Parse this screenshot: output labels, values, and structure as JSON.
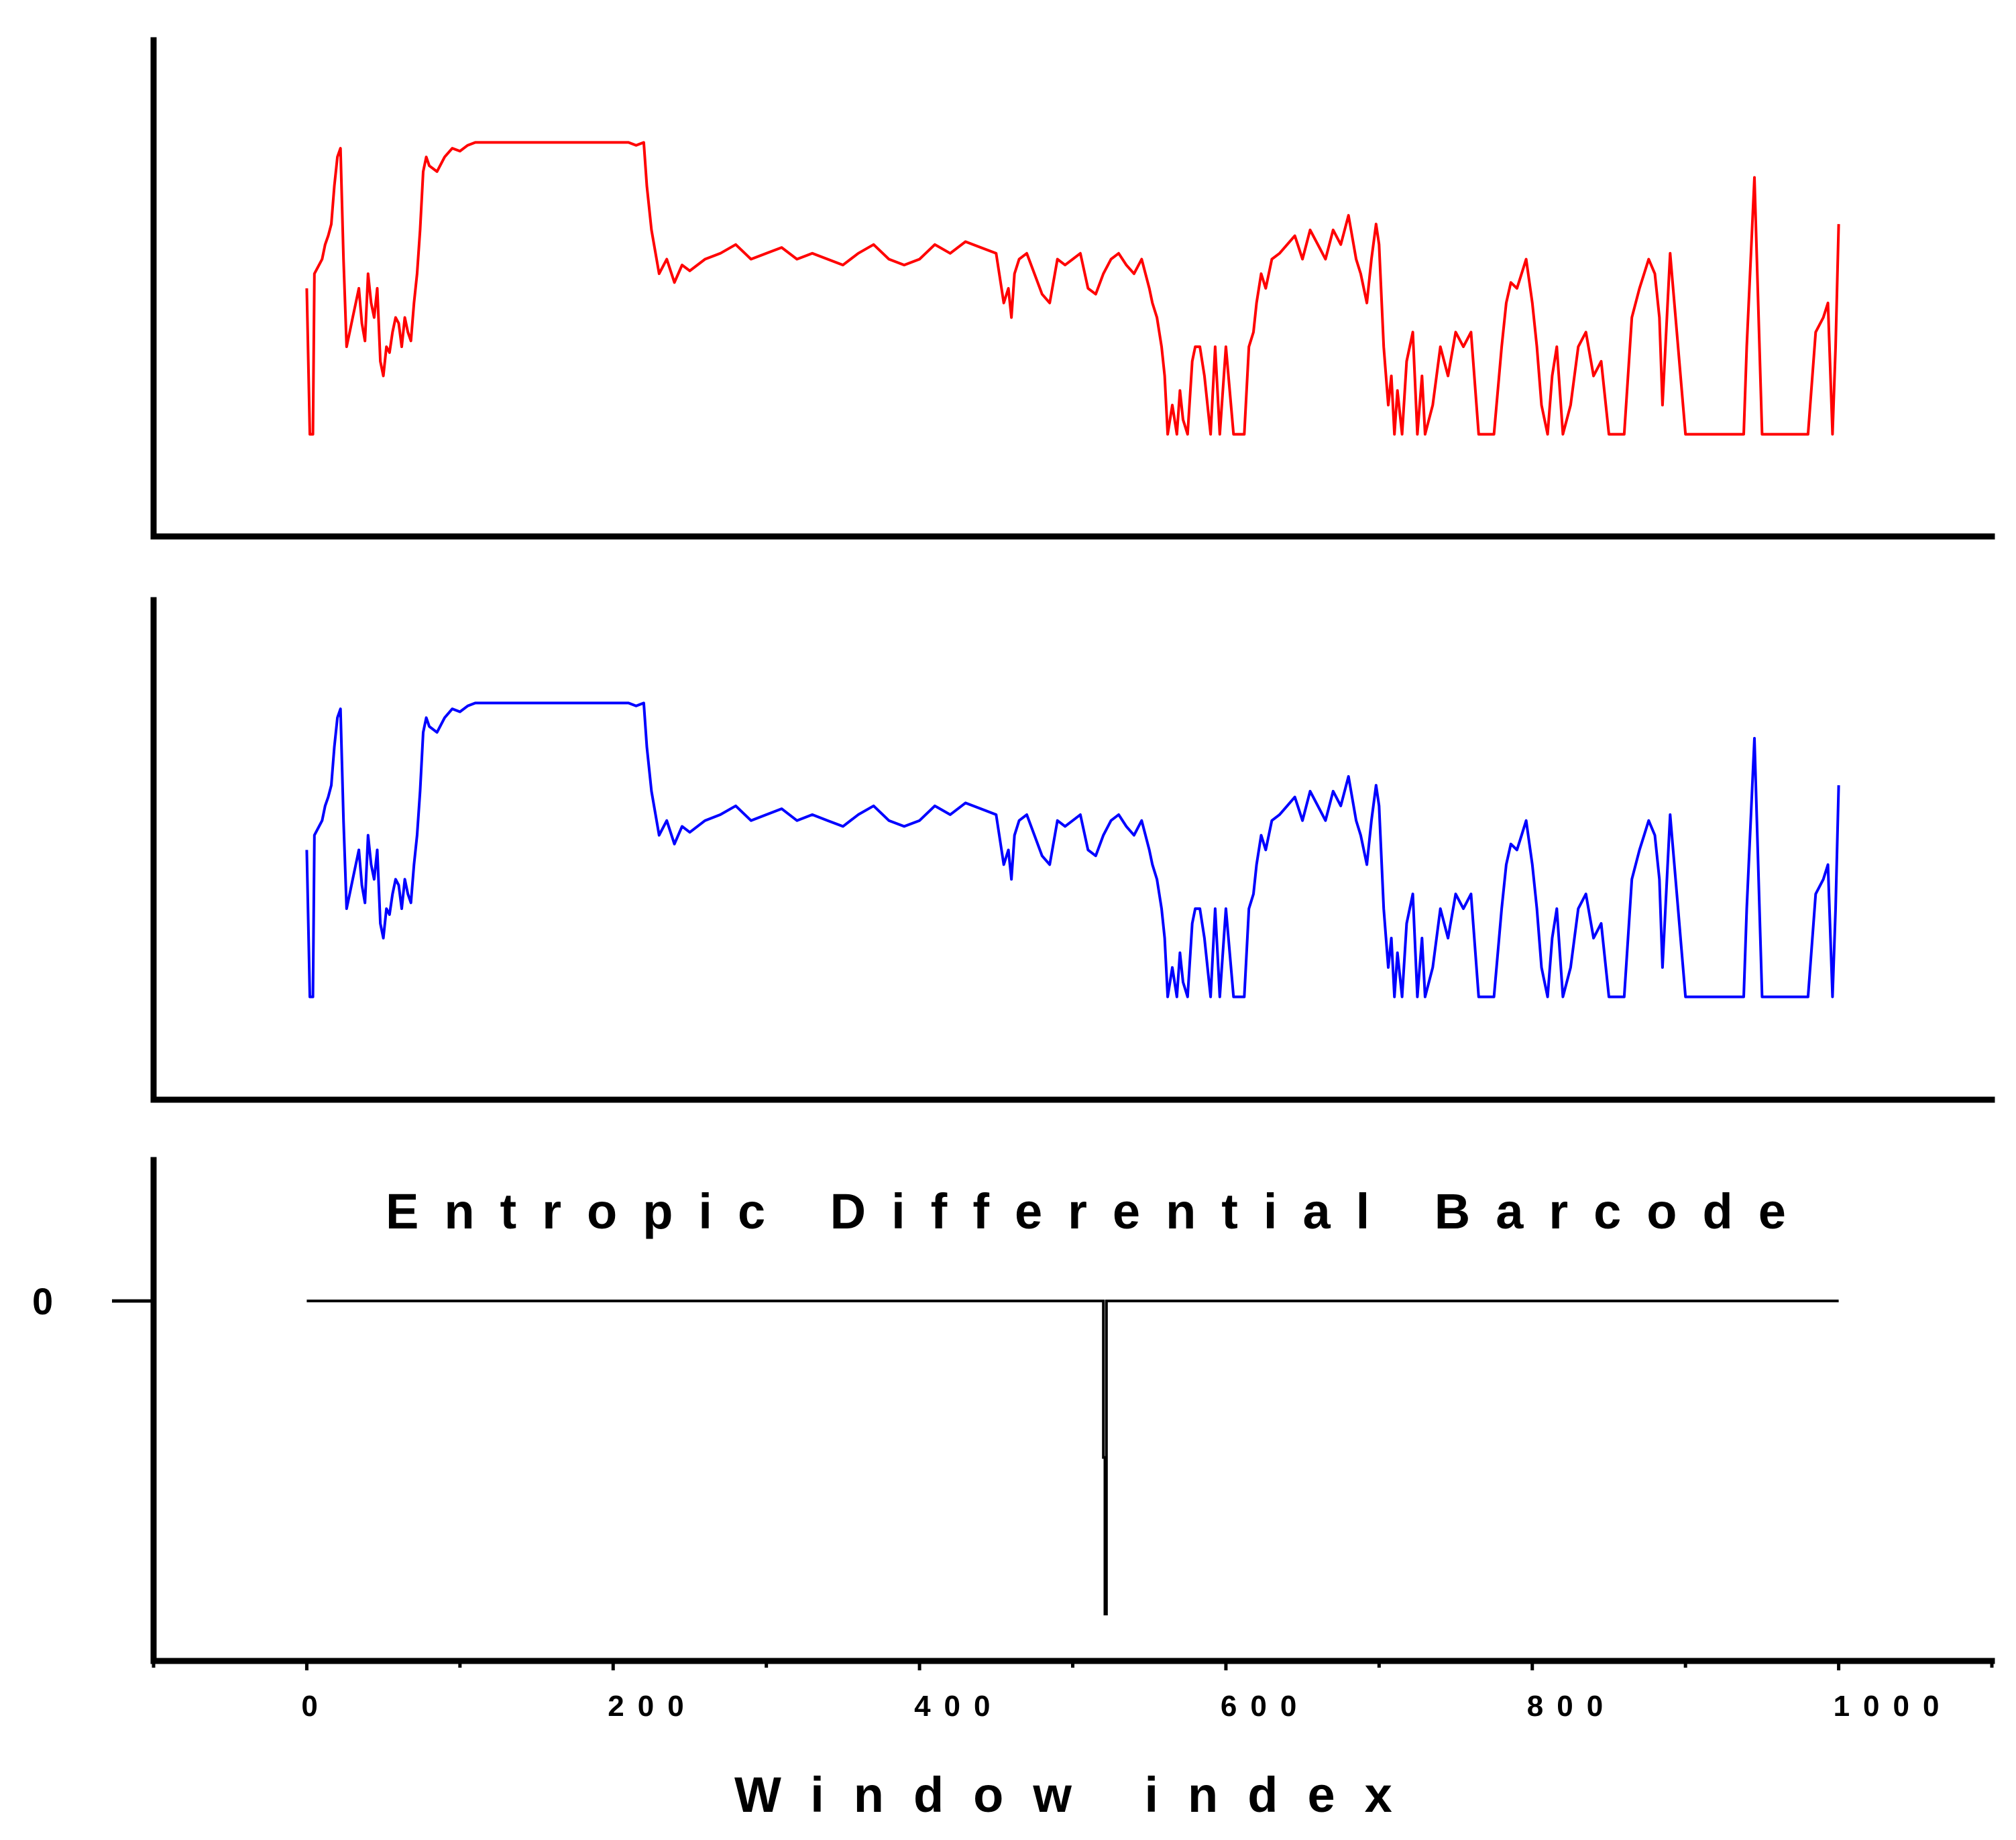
{
  "chart_data": [
    {
      "type": "line",
      "panel": "top",
      "color": "#ff0000",
      "xlim": [
        -100,
        1100
      ],
      "ylim": [
        -0.35,
        1.35
      ],
      "x_points": [
        0,
        2,
        4,
        5,
        8,
        10,
        12,
        14,
        16,
        18,
        20,
        22,
        24,
        26,
        28,
        30,
        32,
        34,
        36,
        38,
        40,
        42,
        44,
        46,
        48,
        50,
        52,
        54,
        56,
        58,
        60,
        62,
        64,
        66,
        68,
        70,
        72,
        74,
        76,
        78,
        80,
        85,
        90,
        95,
        100,
        105,
        110,
        120,
        130,
        140,
        150,
        160,
        170,
        180,
        190,
        200,
        205,
        210,
        215,
        220,
        222,
        225,
        230,
        235,
        240,
        245,
        250,
        260,
        270,
        280,
        290,
        300,
        310,
        320,
        330,
        340,
        350,
        360,
        370,
        380,
        390,
        400,
        410,
        420,
        430,
        440,
        450,
        455,
        458,
        460,
        462,
        465,
        470,
        475,
        480,
        485,
        490,
        495,
        500,
        505,
        510,
        515,
        520,
        525,
        530,
        535,
        540,
        545,
        550,
        552,
        555,
        558,
        560,
        562,
        565,
        568,
        570,
        572,
        575,
        578,
        580,
        583,
        586,
        590,
        593,
        596,
        600,
        605,
        610,
        612,
        615,
        618,
        620,
        623,
        626,
        630,
        635,
        640,
        645,
        650,
        655,
        660,
        665,
        670,
        675,
        680,
        685,
        688,
        690,
        692,
        695,
        698,
        700,
        703,
        706,
        708,
        710,
        712,
        715,
        718,
        720,
        722,
        725,
        728,
        730,
        735,
        740,
        745,
        750,
        755,
        760,
        765,
        770,
        775,
        780,
        783,
        786,
        790,
        793,
        796,
        800,
        803,
        806,
        810,
        813,
        816,
        820,
        825,
        830,
        835,
        840,
        845,
        850,
        855,
        860,
        865,
        870,
        873,
        876,
        880,
        883,
        885,
        890,
        900,
        910,
        920,
        930,
        935,
        938,
        940,
        945,
        950,
        960,
        970,
        980,
        985,
        990,
        993,
        996,
        998,
        1000
      ],
      "y_points": [
        0.5,
        0,
        0,
        0.55,
        0.58,
        0.6,
        0.65,
        0.68,
        0.72,
        0.85,
        0.95,
        0.98,
        0.6,
        0.3,
        0.35,
        0.4,
        0.45,
        0.5,
        0.38,
        0.32,
        0.55,
        0.45,
        0.4,
        0.5,
        0.25,
        0.2,
        0.3,
        0.28,
        0.35,
        0.4,
        0.38,
        0.3,
        0.4,
        0.35,
        0.32,
        0.45,
        0.55,
        0.7,
        0.9,
        0.95,
        0.92,
        0.9,
        0.95,
        0.98,
        0.97,
        0.99,
        1.0,
        1.0,
        1.0,
        1.0,
        1.0,
        1.0,
        1.0,
        1.0,
        1.0,
        1.0,
        1.0,
        1.0,
        0.99,
        1.0,
        0.85,
        0.7,
        0.55,
        0.6,
        0.52,
        0.58,
        0.56,
        0.6,
        0.62,
        0.65,
        0.6,
        0.62,
        0.64,
        0.6,
        0.62,
        0.6,
        0.58,
        0.62,
        0.65,
        0.6,
        0.58,
        0.6,
        0.65,
        0.62,
        0.66,
        0.64,
        0.62,
        0.45,
        0.5,
        0.4,
        0.55,
        0.6,
        0.62,
        0.55,
        0.48,
        0.45,
        0.6,
        0.58,
        0.6,
        0.62,
        0.5,
        0.48,
        0.55,
        0.6,
        0.62,
        0.58,
        0.55,
        0.6,
        0.5,
        0.45,
        0.4,
        0.3,
        0.2,
        0.0,
        0.1,
        0.0,
        0.15,
        0.05,
        0.0,
        0.25,
        0.3,
        0.3,
        0.2,
        0.0,
        0.3,
        0.0,
        0.3,
        0.0,
        0.0,
        0.0,
        0.3,
        0.35,
        0.45,
        0.55,
        0.5,
        0.6,
        0.62,
        0.65,
        0.68,
        0.6,
        0.7,
        0.65,
        0.6,
        0.7,
        0.65,
        0.75,
        0.6,
        0.55,
        0.5,
        0.45,
        0.6,
        0.72,
        0.65,
        0.3,
        0.1,
        0.2,
        0.0,
        0.15,
        0.0,
        0.25,
        0.3,
        0.35,
        0.0,
        0.2,
        0.0,
        0.1,
        0.3,
        0.2,
        0.35,
        0.3,
        0.35,
        0.0,
        0.0,
        0.0,
        0.3,
        0.45,
        0.52,
        0.5,
        0.55,
        0.6,
        0.45,
        0.3,
        0.1,
        0.0,
        0.2,
        0.3,
        0.0,
        0.1,
        0.3,
        0.35,
        0.2,
        0.25,
        0.0,
        0.0,
        0.0,
        0.4,
        0.5,
        0.55,
        0.6,
        0.55,
        0.4,
        0.1,
        0.62,
        0.0,
        0.0,
        0.0,
        0.0,
        0.0,
        0.0,
        0.3,
        0.88,
        0.0,
        0.0,
        0.0,
        0.0,
        0.35,
        0.4,
        0.45,
        0.0,
        0.3,
        0.72
      ]
    },
    {
      "type": "line",
      "panel": "middle",
      "color": "#0000ff",
      "xlim": [
        -100,
        1100
      ],
      "ylim": [
        -0.35,
        1.35
      ],
      "x_points": [
        0,
        2,
        4,
        5,
        8,
        10,
        12,
        14,
        16,
        18,
        20,
        22,
        24,
        26,
        28,
        30,
        32,
        34,
        36,
        38,
        40,
        42,
        44,
        46,
        48,
        50,
        52,
        54,
        56,
        58,
        60,
        62,
        64,
        66,
        68,
        70,
        72,
        74,
        76,
        78,
        80,
        85,
        90,
        95,
        100,
        105,
        110,
        120,
        130,
        140,
        150,
        160,
        170,
        180,
        190,
        200,
        205,
        210,
        215,
        220,
        222,
        225,
        230,
        235,
        240,
        245,
        250,
        260,
        270,
        280,
        290,
        300,
        310,
        320,
        330,
        340,
        350,
        360,
        370,
        380,
        390,
        400,
        410,
        420,
        430,
        440,
        450,
        455,
        458,
        460,
        462,
        465,
        470,
        475,
        480,
        485,
        490,
        495,
        500,
        505,
        510,
        515,
        520,
        525,
        530,
        535,
        540,
        545,
        550,
        552,
        555,
        558,
        560,
        562,
        565,
        568,
        570,
        572,
        575,
        578,
        580,
        583,
        586,
        590,
        593,
        596,
        600,
        605,
        610,
        612,
        615,
        618,
        620,
        623,
        626,
        630,
        635,
        640,
        645,
        650,
        655,
        660,
        665,
        670,
        675,
        680,
        685,
        688,
        690,
        692,
        695,
        698,
        700,
        703,
        706,
        708,
        710,
        712,
        715,
        718,
        720,
        722,
        725,
        728,
        730,
        735,
        740,
        745,
        750,
        755,
        760,
        765,
        770,
        775,
        780,
        783,
        786,
        790,
        793,
        796,
        800,
        803,
        806,
        810,
        813,
        816,
        820,
        825,
        830,
        835,
        840,
        845,
        850,
        855,
        860,
        865,
        870,
        873,
        876,
        880,
        883,
        885,
        890,
        900,
        910,
        920,
        930,
        935,
        938,
        940,
        945,
        950,
        960,
        970,
        980,
        985,
        990,
        993,
        996,
        998,
        1000
      ],
      "y_points": [
        0.5,
        0,
        0,
        0.55,
        0.58,
        0.6,
        0.65,
        0.68,
        0.72,
        0.85,
        0.95,
        0.98,
        0.6,
        0.3,
        0.35,
        0.4,
        0.45,
        0.5,
        0.38,
        0.32,
        0.55,
        0.45,
        0.4,
        0.5,
        0.25,
        0.2,
        0.3,
        0.28,
        0.35,
        0.4,
        0.38,
        0.3,
        0.4,
        0.35,
        0.32,
        0.45,
        0.55,
        0.7,
        0.9,
        0.95,
        0.92,
        0.9,
        0.95,
        0.98,
        0.97,
        0.99,
        1.0,
        1.0,
        1.0,
        1.0,
        1.0,
        1.0,
        1.0,
        1.0,
        1.0,
        1.0,
        1.0,
        1.0,
        0.99,
        1.0,
        0.85,
        0.7,
        0.55,
        0.6,
        0.52,
        0.58,
        0.56,
        0.6,
        0.62,
        0.65,
        0.6,
        0.62,
        0.64,
        0.6,
        0.62,
        0.6,
        0.58,
        0.62,
        0.65,
        0.6,
        0.58,
        0.6,
        0.65,
        0.62,
        0.66,
        0.64,
        0.62,
        0.45,
        0.5,
        0.4,
        0.55,
        0.6,
        0.62,
        0.55,
        0.48,
        0.45,
        0.6,
        0.58,
        0.6,
        0.62,
        0.5,
        0.48,
        0.55,
        0.6,
        0.62,
        0.58,
        0.55,
        0.6,
        0.5,
        0.45,
        0.4,
        0.3,
        0.2,
        0.0,
        0.1,
        0.0,
        0.15,
        0.05,
        0.0,
        0.25,
        0.3,
        0.3,
        0.2,
        0.0,
        0.3,
        0.0,
        0.3,
        0.0,
        0.0,
        0.0,
        0.3,
        0.35,
        0.45,
        0.55,
        0.5,
        0.6,
        0.62,
        0.65,
        0.68,
        0.6,
        0.7,
        0.65,
        0.6,
        0.7,
        0.65,
        0.75,
        0.6,
        0.55,
        0.5,
        0.45,
        0.6,
        0.72,
        0.65,
        0.3,
        0.1,
        0.2,
        0.0,
        0.15,
        0.0,
        0.25,
        0.3,
        0.35,
        0.0,
        0.2,
        0.0,
        0.1,
        0.3,
        0.2,
        0.35,
        0.3,
        0.35,
        0.0,
        0.0,
        0.0,
        0.3,
        0.45,
        0.52,
        0.5,
        0.55,
        0.6,
        0.45,
        0.3,
        0.1,
        0.0,
        0.2,
        0.3,
        0.0,
        0.1,
        0.3,
        0.35,
        0.2,
        0.25,
        0.0,
        0.0,
        0.0,
        0.4,
        0.5,
        0.55,
        0.6,
        0.55,
        0.4,
        0.1,
        0.62,
        0.0,
        0.0,
        0.0,
        0.0,
        0.0,
        0.0,
        0.3,
        0.88,
        0.0,
        0.0,
        0.0,
        0.0,
        0.35,
        0.4,
        0.45,
        0.0,
        0.3,
        0.72
      ]
    },
    {
      "type": "line",
      "panel": "bottom",
      "title": "Entropic Differential Barcode",
      "xlabel": "Window index",
      "color": "#000000",
      "xlim": [
        -100,
        1100
      ],
      "ylim": [
        -1.15,
        0.45
      ],
      "x_ticks": [
        0,
        200,
        400,
        600,
        800,
        1000
      ],
      "x_tick_labels": [
        "0",
        "200",
        "400",
        "600",
        "800",
        "1000"
      ],
      "x_minor_ticks": [
        -100,
        100,
        300,
        500,
        700,
        900,
        1100
      ],
      "y_ticks": [
        0
      ],
      "y_tick_labels": [
        "0"
      ],
      "x_points": [
        0,
        520,
        520,
        521,
        521,
        522,
        522,
        1000
      ],
      "y_points": [
        0,
        0,
        -0.5,
        -0.5,
        -1.0,
        -1.0,
        0,
        0
      ]
    }
  ]
}
